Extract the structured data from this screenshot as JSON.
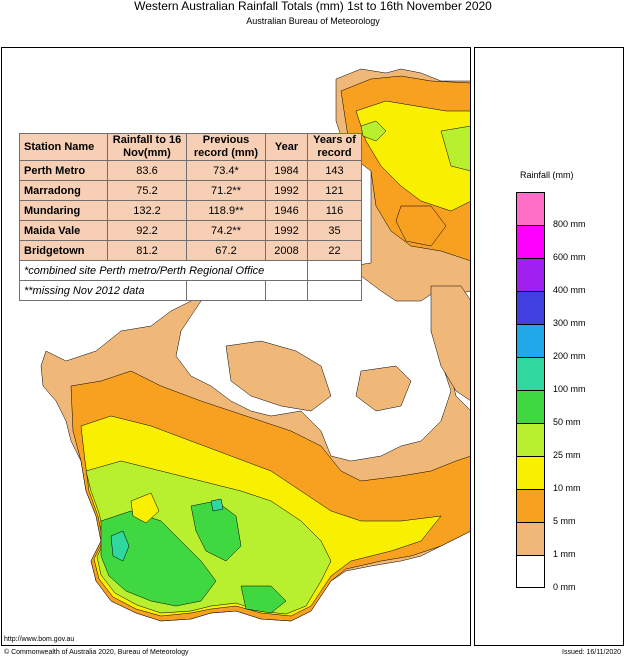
{
  "header": {
    "title": "Western Australian Rainfall Totals (mm) 1st to 16th November 2020",
    "subtitle": "Australian Bureau of Meteorology"
  },
  "table": {
    "headers": [
      "Station Name",
      "Rainfall to 16 Nov(mm)",
      "Previous record (mm)",
      "Year",
      "Years of record"
    ],
    "rows": [
      {
        "station": "Perth Metro",
        "rainfall": "83.6",
        "previous": "73.4*",
        "year": "1984",
        "years_of_record": "143"
      },
      {
        "station": "Marradong",
        "rainfall": "75.2",
        "previous": "71.2**",
        "year": "1992",
        "years_of_record": "121"
      },
      {
        "station": "Mundaring",
        "rainfall": "132.2",
        "previous": "118.9**",
        "year": "1946",
        "years_of_record": "116"
      },
      {
        "station": "Maida Vale",
        "rainfall": "92.2",
        "previous": "74.2**",
        "year": "1992",
        "years_of_record": "35"
      },
      {
        "station": "Bridgetown",
        "rainfall": "81.2",
        "previous": "67.2",
        "year": "2008",
        "years_of_record": "22"
      }
    ],
    "notes": [
      "*combined site Perth metro/Perth Regional Office",
      "**missing Nov 2012 data"
    ]
  },
  "legend": {
    "title": "Rainfall (mm)",
    "items": [
      {
        "label": "800 mm",
        "color": "#ff6ec7"
      },
      {
        "label": "600 mm",
        "color": "#ff00ff"
      },
      {
        "label": "400 mm",
        "color": "#a020f0"
      },
      {
        "label": "300 mm",
        "color": "#4040e0"
      },
      {
        "label": "200 mm",
        "color": "#20a8e8"
      },
      {
        "label": "100 mm",
        "color": "#30d8a0"
      },
      {
        "label": "50 mm",
        "color": "#40d840"
      },
      {
        "label": "25 mm",
        "color": "#b8f030"
      },
      {
        "label": "10 mm",
        "color": "#f8f000"
      },
      {
        "label": "5 mm",
        "color": "#f8a020"
      },
      {
        "label": "1 mm",
        "color": "#f0b878"
      },
      {
        "label": "0 mm",
        "color": "#ffffff"
      }
    ]
  },
  "footer": {
    "url": "http://www.bom.gov.au",
    "copyright": "© Commonwealth of Australia 2020, Bureau of Meteorology",
    "issued": "Issued: 16/11/2020"
  }
}
